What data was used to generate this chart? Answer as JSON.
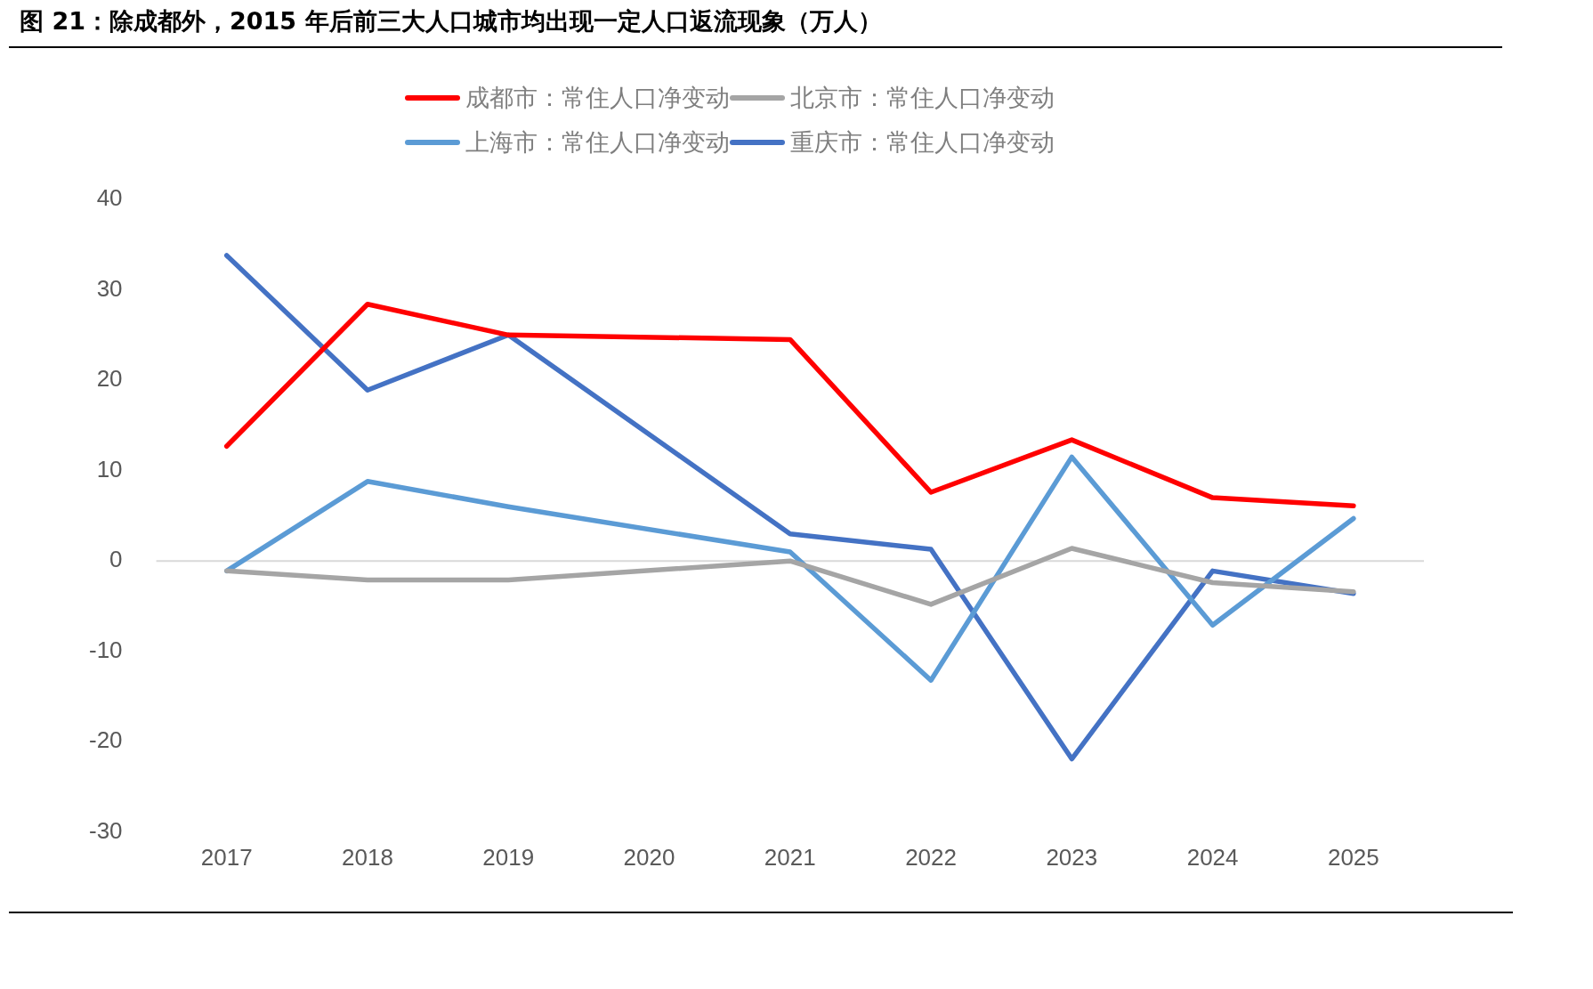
{
  "chart_data": {
    "type": "line",
    "title": "图 21：除成都外，2015 年后前三大人口城市均出现一定人口返流现象（万人）",
    "categories": [
      "2017",
      "2018",
      "2019",
      "2020",
      "2021",
      "2022",
      "2023",
      "2024",
      "2025"
    ],
    "series": [
      {
        "name": "成都市：常住人口净变动",
        "color": "#ff0000",
        "values": [
          12.7,
          28.4,
          25.0,
          null,
          24.5,
          7.6,
          13.4,
          7.0,
          6.1
        ]
      },
      {
        "name": "北京市：常住人口净变动",
        "color": "#a5a5a5",
        "values": [
          -1.1,
          -2.1,
          -2.1,
          null,
          0,
          -4.8,
          1.4,
          -2.4,
          -3.4
        ]
      },
      {
        "name": "上海市：常住人口净变动",
        "color": "#5b9bd5",
        "values": [
          -1.1,
          8.8,
          6.0,
          null,
          1.0,
          -13.2,
          11.5,
          -7.1,
          4.7
        ]
      },
      {
        "name": "重庆市：常住人口净变动",
        "color": "#4472c4",
        "values": [
          33.8,
          18.9,
          25.0,
          null,
          3.0,
          1.3,
          -21.9,
          -1.1,
          -3.6
        ]
      }
    ],
    "ylim": [
      -30,
      40
    ],
    "yticks": [
      -30,
      -20,
      -10,
      0,
      10,
      20,
      30,
      40
    ],
    "ref_lines": [
      {
        "axis": "y",
        "value": 0,
        "color": "#d9d9d9"
      }
    ],
    "grid": false,
    "legend": "top",
    "marker": "none",
    "line_style": "solid"
  }
}
